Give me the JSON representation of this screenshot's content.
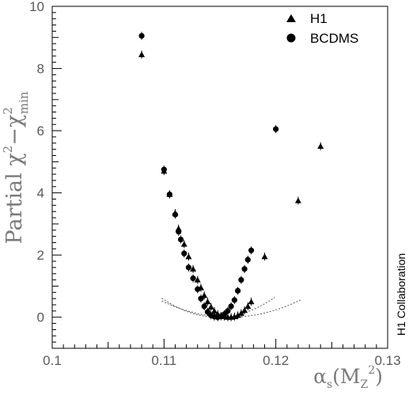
{
  "chart_data": {
    "type": "scatter",
    "ylabel_main": "Partial χ",
    "ylabel_sup": "2",
    "ylabel_minus": "−χ",
    "ylabel_sup2": "2",
    "ylabel_sub": "min",
    "xlabel_main": "α",
    "xlabel_sub": "s",
    "xlabel_open": "(M",
    "xlabel_sub2": "Z",
    "xlabel_sup": "2",
    "xlabel_close": ")",
    "side_label": "H1 Collaboration",
    "xlim": [
      0.1,
      0.13
    ],
    "ylim": [
      -1,
      10
    ],
    "x_ticks": [
      0.1,
      0.11,
      0.12,
      0.13
    ],
    "x_tick_labels": [
      "0.1",
      "0.11",
      "0.12",
      "0.13"
    ],
    "y_ticks": [
      0,
      2,
      4,
      6,
      8,
      10
    ],
    "y_tick_labels": [
      "0",
      "2",
      "4",
      "6",
      "8",
      "10"
    ],
    "grid": false,
    "legend_position": "top-right",
    "series": [
      {
        "name": "H1",
        "marker": "triangle",
        "color": "#000000",
        "x": [
          0.108,
          0.11,
          0.1105,
          0.111,
          0.1113,
          0.1118,
          0.1122,
          0.1126,
          0.113,
          0.1133,
          0.1136,
          0.1139,
          0.1142,
          0.1145,
          0.1148,
          0.1151,
          0.1154,
          0.1157,
          0.116,
          0.1163,
          0.1166,
          0.1169,
          0.1172,
          0.1175,
          0.1178,
          0.119,
          0.122,
          0.124
        ],
        "y": [
          8.45,
          4.7,
          3.95,
          3.35,
          2.85,
          2.35,
          1.95,
          1.55,
          1.2,
          0.95,
          0.7,
          0.5,
          0.33,
          0.2,
          0.1,
          0.04,
          0.02,
          0.0,
          0.0,
          0.02,
          0.06,
          0.13,
          0.22,
          0.35,
          0.5,
          1.95,
          3.75,
          5.5
        ]
      },
      {
        "name": "BCDMS",
        "marker": "circle",
        "color": "#000000",
        "x": [
          0.108,
          0.11,
          0.1105,
          0.111,
          0.1113,
          0.1115,
          0.1118,
          0.1122,
          0.1126,
          0.113,
          0.1133,
          0.1136,
          0.1139,
          0.1142,
          0.1145,
          0.1148,
          0.1151,
          0.1154,
          0.1157,
          0.116,
          0.1163,
          0.1166,
          0.1169,
          0.1172,
          0.1175,
          0.1178,
          0.12
        ],
        "y": [
          9.05,
          4.75,
          3.95,
          3.3,
          2.75,
          2.5,
          2.05,
          1.6,
          1.25,
          0.9,
          0.6,
          0.35,
          0.17,
          0.06,
          0.02,
          0.0,
          0.03,
          0.1,
          0.2,
          0.35,
          0.55,
          0.85,
          1.2,
          1.55,
          1.85,
          2.15,
          6.05
        ]
      }
    ],
    "fit_curves": [
      {
        "name": "H1 fit",
        "x0": 0.1159,
        "a": 14000,
        "x_range": [
          0.1098,
          0.1222
        ]
      },
      {
        "name": "BCDMS fit",
        "x0": 0.1148,
        "a": 24500,
        "x_range": [
          0.1098,
          0.1199
        ]
      }
    ]
  }
}
